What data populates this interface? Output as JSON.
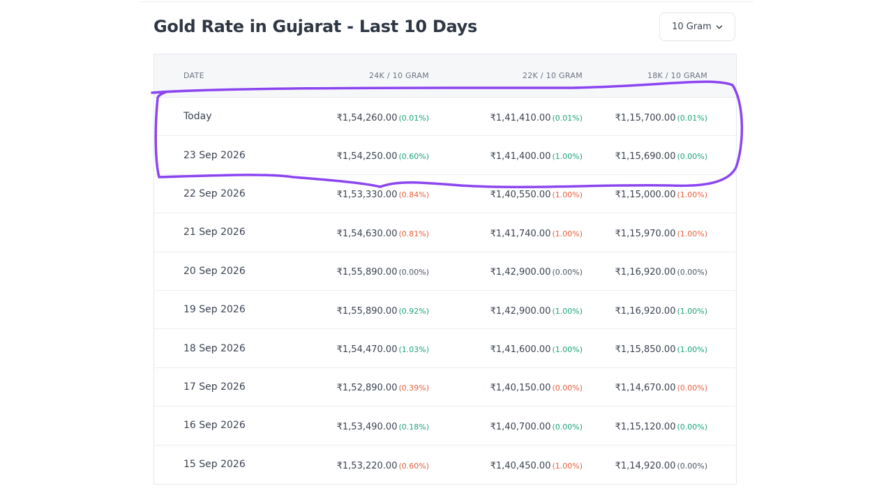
{
  "header": {
    "title": "Gold Rate in Gujarat - Last 10 Days",
    "unit_select": "10 Gram"
  },
  "table": {
    "columns": [
      "DATE",
      "24K / 10 GRAM",
      "22K / 10 GRAM",
      "18K / 10 GRAM"
    ],
    "rows": [
      {
        "date": "Today",
        "k24": "₹1,54,260.00",
        "k24_chg": "(0.01%)",
        "k24_dir": "up",
        "k22": "₹1,41,410.00",
        "k22_chg": "(0.01%)",
        "k22_dir": "up",
        "k18": "₹1,15,700.00",
        "k18_chg": "(0.01%)",
        "k18_dir": "up"
      },
      {
        "date": "23 Sep 2026",
        "k24": "₹1,54,250.00",
        "k24_chg": "(0.60%)",
        "k24_dir": "up",
        "k22": "₹1,41,400.00",
        "k22_chg": "(1.00%)",
        "k22_dir": "up",
        "k18": "₹1,15,690.00",
        "k18_chg": "(0.00%)",
        "k18_dir": "up"
      },
      {
        "date": "22 Sep 2026",
        "k24": "₹1,53,330.00",
        "k24_chg": "(0.84%)",
        "k24_dir": "down",
        "k22": "₹1,40,550.00",
        "k22_chg": "(1.00%)",
        "k22_dir": "down",
        "k18": "₹1,15,000.00",
        "k18_chg": "(1.00%)",
        "k18_dir": "down"
      },
      {
        "date": "21 Sep 2026",
        "k24": "₹1,54,630.00",
        "k24_chg": "(0.81%)",
        "k24_dir": "down",
        "k22": "₹1,41,740.00",
        "k22_chg": "(1.00%)",
        "k22_dir": "down",
        "k18": "₹1,15,970.00",
        "k18_chg": "(1.00%)",
        "k18_dir": "down"
      },
      {
        "date": "20 Sep 2026",
        "k24": "₹1,55,890.00",
        "k24_chg": "(0.00%)",
        "k24_dir": "flat",
        "k22": "₹1,42,900.00",
        "k22_chg": "(0.00%)",
        "k22_dir": "flat",
        "k18": "₹1,16,920.00",
        "k18_chg": "(0.00%)",
        "k18_dir": "flat"
      },
      {
        "date": "19 Sep 2026",
        "k24": "₹1,55,890.00",
        "k24_chg": "(0.92%)",
        "k24_dir": "up",
        "k22": "₹1,42,900.00",
        "k22_chg": "(1.00%)",
        "k22_dir": "up",
        "k18": "₹1,16,920.00",
        "k18_chg": "(1.00%)",
        "k18_dir": "up"
      },
      {
        "date": "18 Sep 2026",
        "k24": "₹1,54,470.00",
        "k24_chg": "(1.03%)",
        "k24_dir": "up",
        "k22": "₹1,41,600.00",
        "k22_chg": "(1.00%)",
        "k22_dir": "up",
        "k18": "₹1,15,850.00",
        "k18_chg": "(1.00%)",
        "k18_dir": "up"
      },
      {
        "date": "17 Sep 2026",
        "k24": "₹1,52,890.00",
        "k24_chg": "(0.39%)",
        "k24_dir": "down",
        "k22": "₹1,40,150.00",
        "k22_chg": "(0.00%)",
        "k22_dir": "down",
        "k18": "₹1,14,670.00",
        "k18_chg": "(0.00%)",
        "k18_dir": "down"
      },
      {
        "date": "16 Sep 2026",
        "k24": "₹1,53,490.00",
        "k24_chg": "(0.18%)",
        "k24_dir": "up",
        "k22": "₹1,40,700.00",
        "k22_chg": "(0.00%)",
        "k22_dir": "up",
        "k18": "₹1,15,120.00",
        "k18_chg": "(0.00%)",
        "k18_dir": "up"
      },
      {
        "date": "15 Sep 2026",
        "k24": "₹1,53,220.00",
        "k24_chg": "(0.60%)",
        "k24_dir": "down",
        "k22": "₹1,40,450.00",
        "k22_chg": "(1.00%)",
        "k22_dir": "down",
        "k18": "₹1,14,920.00",
        "k18_chg": "(0.00%)",
        "k18_dir": "flat"
      }
    ]
  },
  "colors": {
    "up": "#1aa37a",
    "down": "#e8603c",
    "flat": "#4b5563",
    "annotation": "#8b45f0"
  },
  "icons": {
    "unit_select": "chevron-down-icon"
  }
}
